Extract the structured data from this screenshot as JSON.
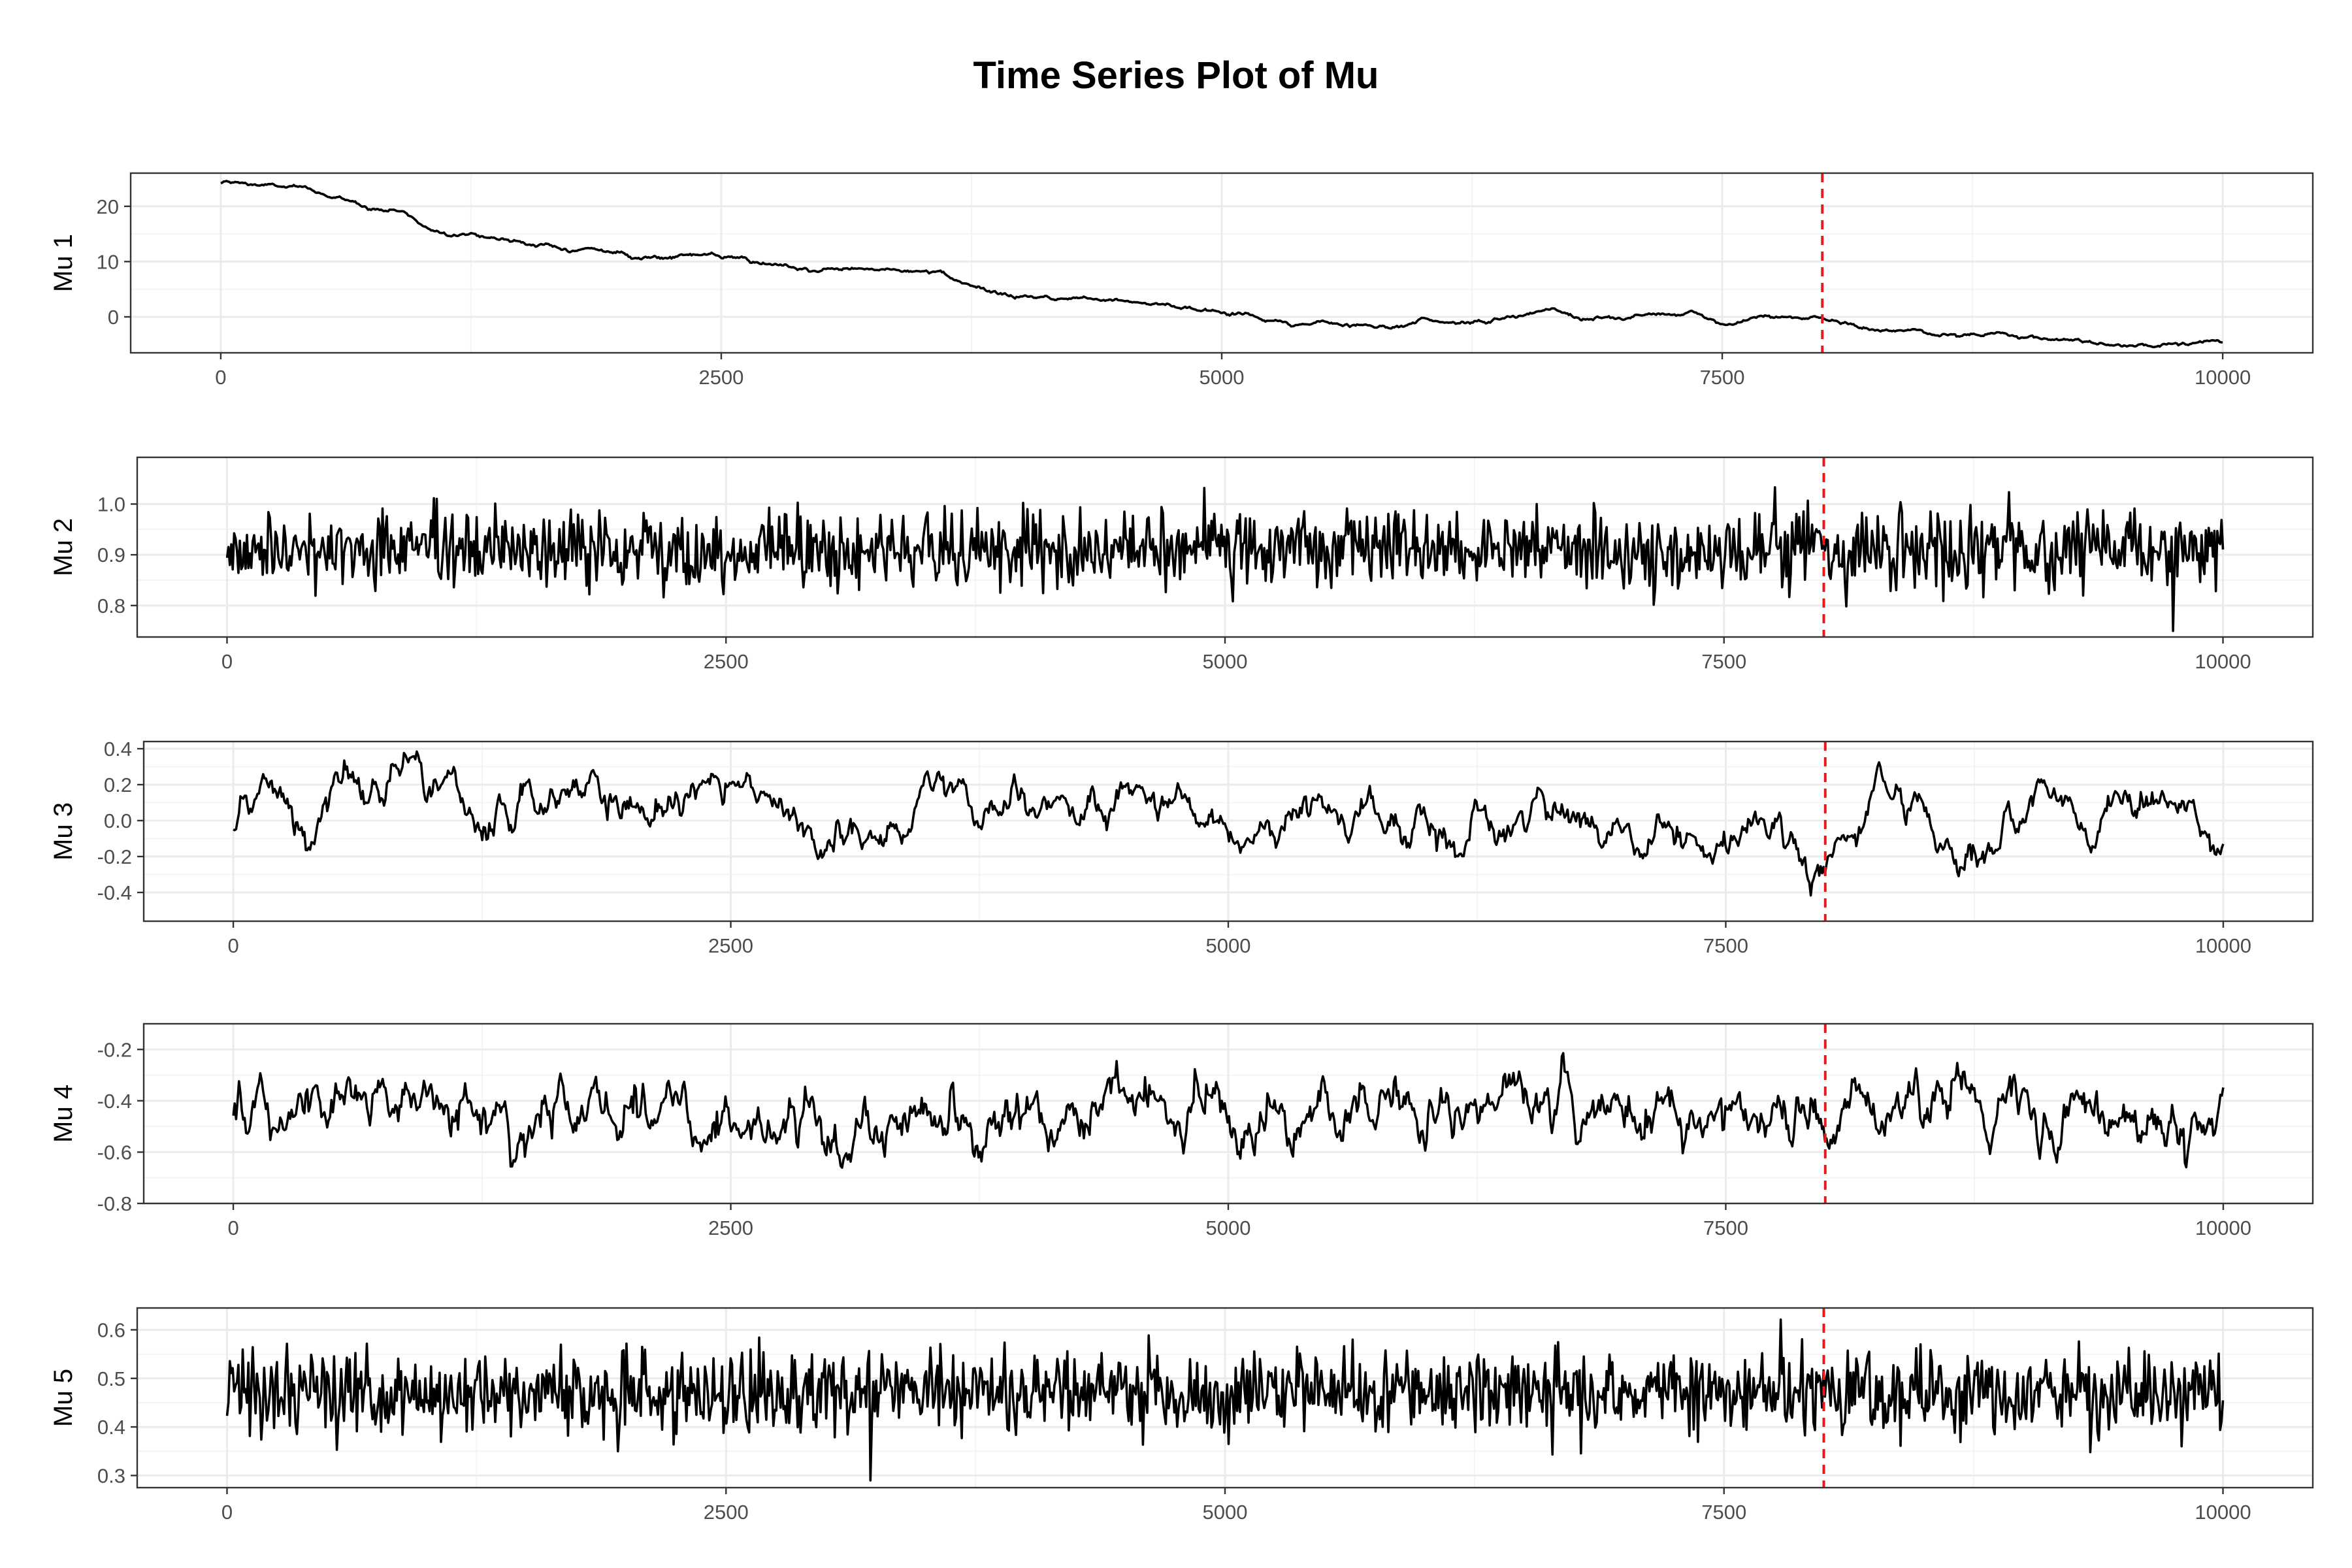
{
  "title": "Time Series Plot of Mu",
  "colors": {
    "line": "#000000",
    "marker": "#e41a1c",
    "grid_major": "#ebebeb",
    "grid_minor": "#f4f4f4",
    "panel_border": "#333333"
  },
  "chart_data": [
    {
      "type": "line",
      "ylabel": "Mu 1",
      "xlim": [
        0,
        10000
      ],
      "ylim": [
        -6.5,
        26
      ],
      "xticks": [
        0,
        2500,
        5000,
        7500,
        10000
      ],
      "yticks": [
        0,
        10,
        20
      ],
      "x_marker": 8000,
      "grid": true,
      "noise": "walk",
      "keypoints": [
        [
          0,
          24.3
        ],
        [
          300,
          23.6
        ],
        [
          450,
          22.8
        ],
        [
          700,
          20.3
        ],
        [
          900,
          19.2
        ],
        [
          1050,
          15.8
        ],
        [
          1300,
          14.8
        ],
        [
          1500,
          13.6
        ],
        [
          1700,
          12.4
        ],
        [
          1900,
          12.2
        ],
        [
          2100,
          10.6
        ],
        [
          2300,
          11.5
        ],
        [
          2600,
          10.3
        ],
        [
          2800,
          8.7
        ],
        [
          3100,
          8.5
        ],
        [
          3400,
          8.6
        ],
        [
          3600,
          7.7
        ],
        [
          3700,
          5.8
        ],
        [
          3900,
          4.0
        ],
        [
          4200,
          3.3
        ],
        [
          4500,
          3.4
        ],
        [
          4700,
          2.4
        ],
        [
          4900,
          1.2
        ],
        [
          5100,
          0.6
        ],
        [
          5300,
          -1.1
        ],
        [
          5600,
          -1.4
        ],
        [
          5850,
          -1.5
        ],
        [
          6000,
          -0.5
        ],
        [
          6300,
          -1.1
        ],
        [
          6500,
          0.2
        ],
        [
          6650,
          1.3
        ],
        [
          6800,
          -0.1
        ],
        [
          7000,
          -0.3
        ],
        [
          7350,
          0.8
        ],
        [
          7500,
          -1.1
        ],
        [
          7750,
          0.0
        ],
        [
          8000,
          -0.4
        ],
        [
          8200,
          -2.2
        ],
        [
          8500,
          -2.6
        ],
        [
          8700,
          -3.3
        ],
        [
          8900,
          -3.0
        ],
        [
          9100,
          -4.2
        ],
        [
          9400,
          -4.9
        ],
        [
          9700,
          -4.7
        ],
        [
          10000,
          -4.3
        ]
      ]
    },
    {
      "type": "line",
      "ylabel": "Mu 2",
      "xlim": [
        0,
        10000
      ],
      "ylim": [
        0.738,
        1.092
      ],
      "xticks": [
        0,
        2500,
        5000,
        7500,
        10000
      ],
      "yticks": [
        0.8,
        0.9,
        1.0
      ],
      "x_marker": 8000,
      "grid": true,
      "noise": "white",
      "mean": 0.91,
      "sd": 0.038,
      "min": 0.75,
      "max": 1.08
    },
    {
      "type": "line",
      "ylabel": "Mu 3",
      "xlim": [
        0,
        10000
      ],
      "ylim": [
        -0.56,
        0.44
      ],
      "xticks": [
        0,
        2500,
        5000,
        7500,
        10000
      ],
      "yticks": [
        -0.4,
        -0.2,
        0.0,
        0.2,
        0.4
      ],
      "x_marker": 8000,
      "grid": true,
      "noise": "ar",
      "mean": 0.0,
      "sd": 0.13,
      "phi": 0.96,
      "min": -0.53,
      "max": 0.4
    },
    {
      "type": "line",
      "ylabel": "Mu 4",
      "xlim": [
        0,
        10000
      ],
      "ylim": [
        -0.8,
        -0.1
      ],
      "xticks": [
        0,
        2500,
        5000,
        7500,
        10000
      ],
      "yticks": [
        -0.8,
        -0.6,
        -0.4,
        -0.2
      ],
      "x_marker": 8000,
      "grid": true,
      "noise": "ar",
      "mean": -0.45,
      "sd": 0.085,
      "phi": 0.9,
      "min": -0.78,
      "max": -0.12
    },
    {
      "type": "line",
      "ylabel": "Mu 5",
      "xlim": [
        0,
        10000
      ],
      "ylim": [
        0.275,
        0.645
      ],
      "xticks": [
        0,
        2500,
        5000,
        7500,
        10000
      ],
      "yticks": [
        0.3,
        0.4,
        0.5,
        0.6
      ],
      "x_marker": 8000,
      "grid": true,
      "noise": "white",
      "mean": 0.47,
      "sd": 0.045,
      "min": 0.29,
      "max": 0.63
    }
  ]
}
